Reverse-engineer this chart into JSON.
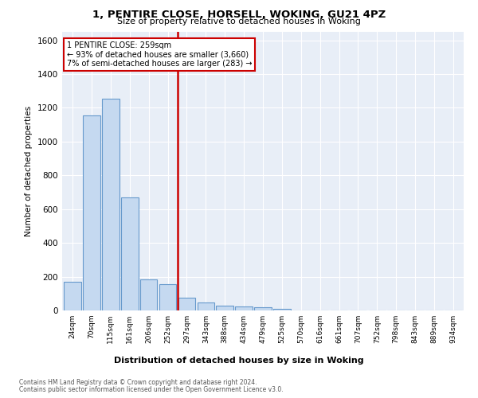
{
  "title1": "1, PENTIRE CLOSE, HORSELL, WOKING, GU21 4PZ",
  "title2": "Size of property relative to detached houses in Woking",
  "xlabel": "Distribution of detached houses by size in Woking",
  "ylabel": "Number of detached properties",
  "categories": [
    "24sqm",
    "70sqm",
    "115sqm",
    "161sqm",
    "206sqm",
    "252sqm",
    "297sqm",
    "343sqm",
    "388sqm",
    "434sqm",
    "479sqm",
    "525sqm",
    "570sqm",
    "616sqm",
    "661sqm",
    "707sqm",
    "752sqm",
    "798sqm",
    "843sqm",
    "889sqm",
    "934sqm"
  ],
  "values": [
    168,
    1155,
    1255,
    670,
    185,
    155,
    75,
    45,
    30,
    25,
    20,
    8,
    0,
    0,
    0,
    0,
    0,
    0,
    0,
    0,
    0
  ],
  "bar_color": "#c5d9f0",
  "bar_edge_color": "#6699cc",
  "vline_x": 5.5,
  "vline_color": "#cc0000",
  "annotation_lines": [
    "1 PENTIRE CLOSE: 259sqm",
    "← 93% of detached houses are smaller (3,660)",
    "7% of semi-detached houses are larger (283) →"
  ],
  "annotation_box_color": "#cc0000",
  "ylim": [
    0,
    1650
  ],
  "yticks": [
    0,
    200,
    400,
    600,
    800,
    1000,
    1200,
    1400,
    1600
  ],
  "footer1": "Contains HM Land Registry data © Crown copyright and database right 2024.",
  "footer2": "Contains public sector information licensed under the Open Government Licence v3.0.",
  "bg_color": "#e8eef7",
  "grid_color": "#ffffff"
}
